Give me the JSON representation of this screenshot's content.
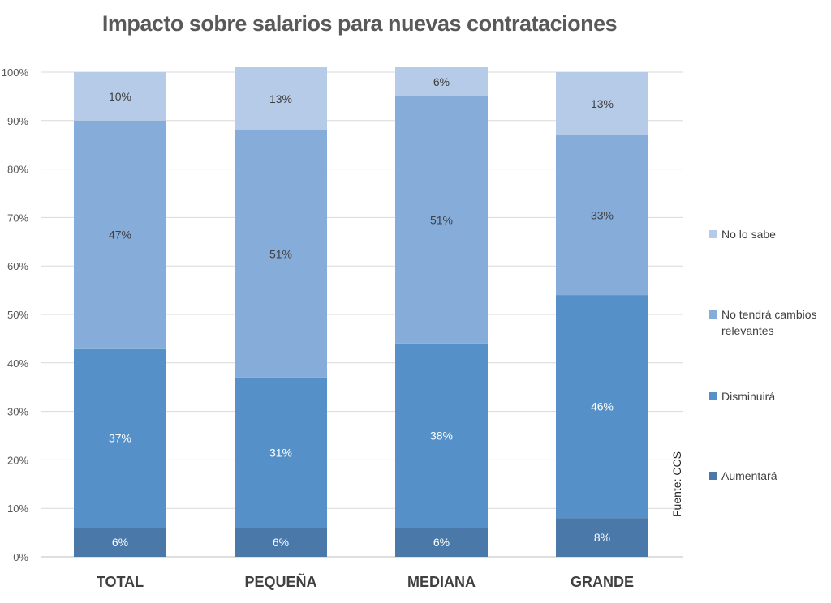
{
  "chart_data": {
    "type": "bar",
    "stacked": true,
    "title": "Impacto sobre salarios para nuevas contrataciones",
    "xlabel": "",
    "ylabel": "",
    "ylim": [
      0,
      100
    ],
    "ytick_labels": [
      "0%",
      "10%",
      "20%",
      "30%",
      "40%",
      "50%",
      "60%",
      "70%",
      "80%",
      "90%",
      "100%"
    ],
    "categories": [
      "TOTAL",
      "PEQUEÑA",
      "MEDIANA",
      "GRANDE"
    ],
    "series": [
      {
        "name": "Aumentará",
        "color": "#4a78a8",
        "values": [
          6,
          6,
          6,
          8
        ],
        "labels": [
          "6%",
          "6%",
          "6%",
          "8%"
        ]
      },
      {
        "name": "Disminuirá",
        "color": "#5591c8",
        "values": [
          37,
          31,
          38,
          46
        ],
        "labels": [
          "37%",
          "31%",
          "38%",
          "46%"
        ]
      },
      {
        "name": "No tendrá cambios relevantes",
        "color": "#86acd9",
        "values": [
          47,
          51,
          51,
          33
        ],
        "labels": [
          "47%",
          "51%",
          "51%",
          "33%"
        ]
      },
      {
        "name": "No lo sabe",
        "color": "#b5cbe7",
        "values": [
          10,
          13,
          6,
          13
        ],
        "labels": [
          "10%",
          "13%",
          "6%",
          "13%"
        ]
      }
    ],
    "grid": true,
    "legend_position": "right",
    "source": "Fuente: CCS"
  }
}
